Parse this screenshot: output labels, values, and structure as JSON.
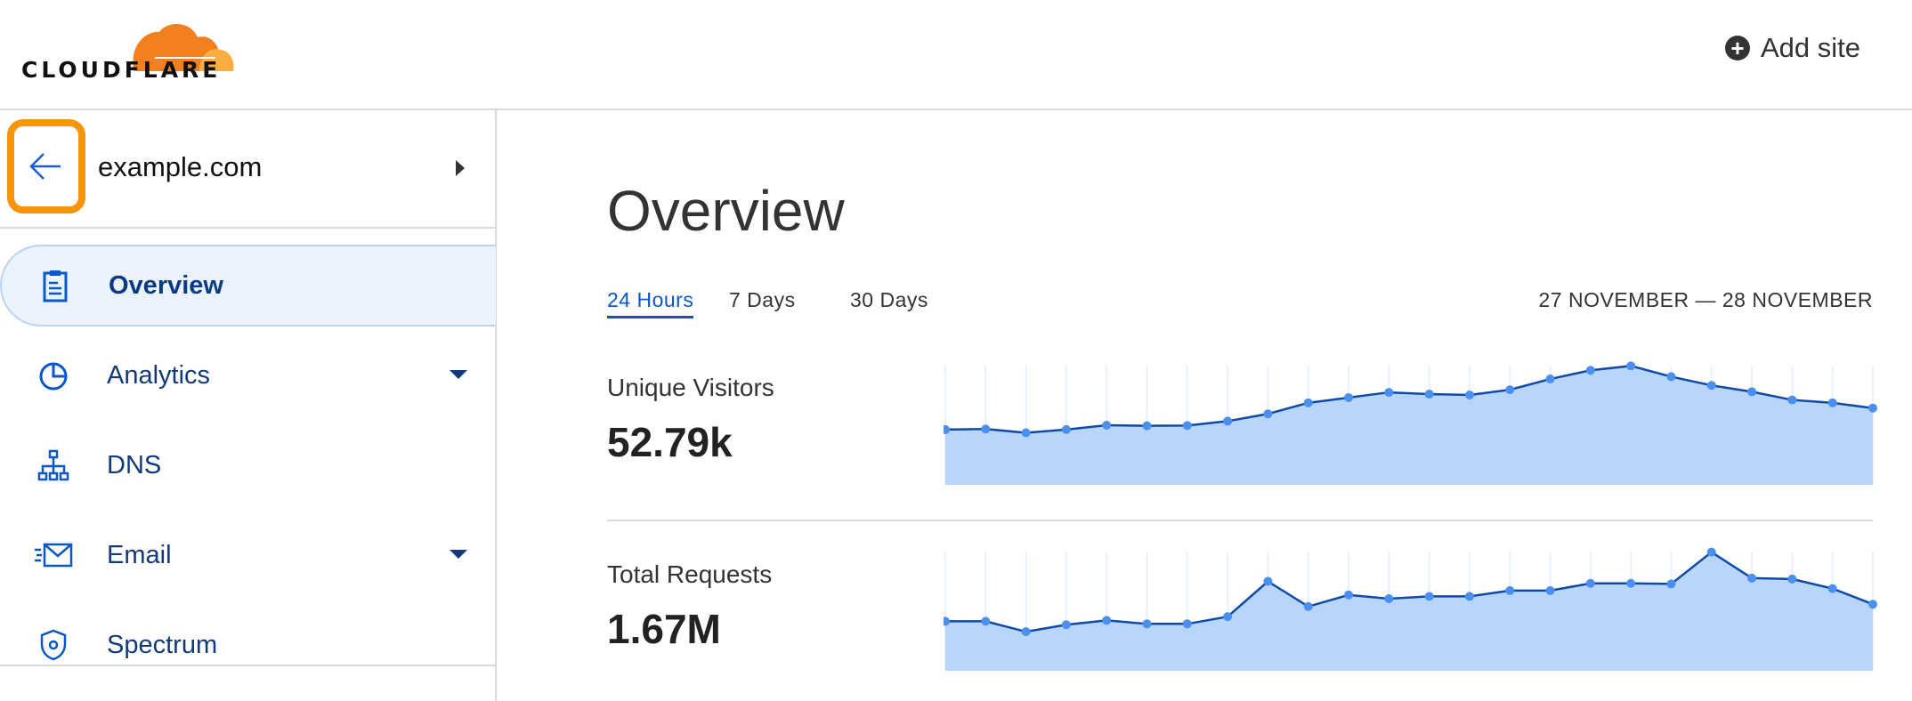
{
  "header": {
    "logo_text": "CLOUDFLARE",
    "add_site_label": "Add site",
    "add_site_icon": "plus-circle-icon"
  },
  "zone": {
    "domain": "example.com",
    "back_icon": "arrow-left-icon",
    "highlight_color": "#f6950c"
  },
  "sidebar": {
    "items": [
      {
        "label": "Overview",
        "icon": "clipboard-icon",
        "active": true,
        "dropdown": false
      },
      {
        "label": "Analytics",
        "icon": "pie-chart-icon",
        "active": false,
        "dropdown": true
      },
      {
        "label": "DNS",
        "icon": "network-icon",
        "active": false,
        "dropdown": false
      },
      {
        "label": "Email",
        "icon": "email-icon",
        "active": false,
        "dropdown": true
      },
      {
        "label": "Spectrum",
        "icon": "shield-icon",
        "active": false,
        "dropdown": false
      }
    ]
  },
  "main": {
    "title": "Overview",
    "tabs": [
      {
        "label": "24 Hours",
        "active": true
      },
      {
        "label": "7 Days",
        "active": false
      },
      {
        "label": "30 Days",
        "active": false
      }
    ],
    "date_range": "27 NOVEMBER — 28 NOVEMBER",
    "metrics": [
      {
        "label": "Unique Visitors",
        "value": "52.79k"
      },
      {
        "label": "Total Requests",
        "value": "1.67M"
      }
    ]
  },
  "chart_data": [
    {
      "type": "area",
      "series_of": "Unique Visitors",
      "ylim": [
        0,
        410
      ],
      "grid": "vertical",
      "colors": {
        "line": "#0f4aa8",
        "fill": "#b8d6fb",
        "point": "#4b8ff0"
      },
      "values": [
        190,
        192,
        179,
        190,
        205,
        203,
        204,
        219,
        244,
        282,
        300,
        318,
        312,
        309,
        327,
        364,
        394,
        409,
        372,
        342,
        320,
        292,
        282,
        264
      ]
    },
    {
      "type": "area",
      "series_of": "Total Requests",
      "ylim": [
        0,
        412
      ],
      "grid": "vertical",
      "colors": {
        "line": "#0f4aa8",
        "fill": "#b8d6fb",
        "point": "#4b8ff0"
      },
      "values": [
        171,
        171,
        135,
        159,
        174,
        162,
        162,
        187,
        309,
        222,
        262,
        249,
        257,
        257,
        277,
        277,
        302,
        302,
        300,
        410,
        320,
        317,
        284,
        230
      ]
    }
  ]
}
